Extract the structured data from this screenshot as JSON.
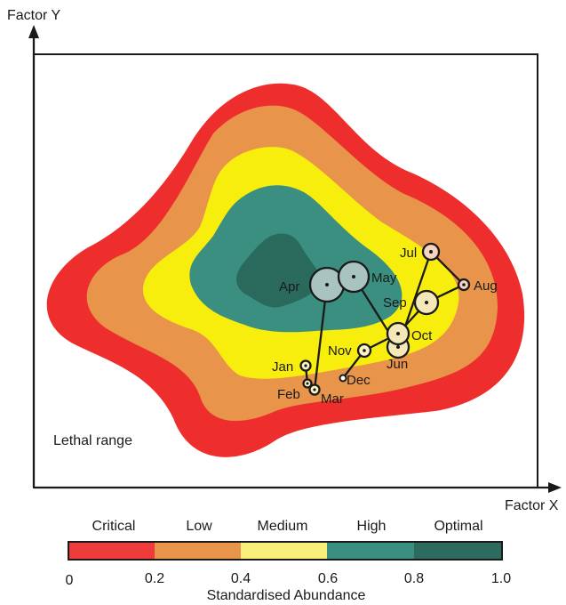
{
  "axes": {
    "x_label": "Factor X",
    "y_label": "Factor Y"
  },
  "region_label": "Lethal range",
  "zone_colors": {
    "critical": "#ee2d2d",
    "low": "#e8944a",
    "medium": "#f7ee0e",
    "high": "#3b8f80",
    "optimal": "#2a6a5d"
  },
  "months": {
    "jan": "Jan",
    "feb": "Feb",
    "mar": "Mar",
    "apr": "Apr",
    "may": "May",
    "jun": "Jun",
    "jul": "Jul",
    "aug": "Aug",
    "sep": "Sep",
    "oct": "Oct",
    "nov": "Nov",
    "dec": "Dec"
  },
  "legend": {
    "categories": [
      "Critical",
      "Low",
      "Medium",
      "High",
      "Optimal"
    ],
    "ticks": [
      "0",
      "0.2",
      "0.4",
      "0.6",
      "0.8",
      "1.0"
    ],
    "title": "Standardised Abundance",
    "colors": [
      "#ee3b3b",
      "#e8944a",
      "#f8f07a",
      "#3b8f80",
      "#2e6b5f"
    ]
  }
}
